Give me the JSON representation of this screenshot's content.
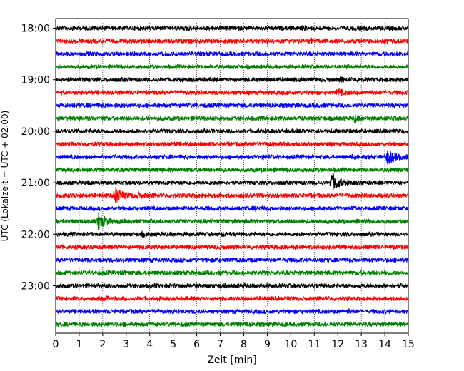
{
  "chart_data": {
    "type": "line",
    "title": "",
    "xlabel": "Zeit  [min]",
    "ylabel": "UTC (Lokalzeit = UTC + 02:00)",
    "xlim": [
      0,
      15
    ],
    "x_ticks": [
      0,
      1,
      2,
      3,
      4,
      5,
      6,
      7,
      8,
      9,
      10,
      11,
      12,
      13,
      14,
      15
    ],
    "y_ticks": [
      "18:00",
      "19:00",
      "20:00",
      "21:00",
      "22:00",
      "23:00"
    ],
    "row_interval_min": 15,
    "grid": "vertical dotted lines at each minute",
    "colors_cycle": [
      "#000000",
      "#ff0000",
      "#0000ff",
      "#008000"
    ],
    "rows": [
      {
        "start": "18:00",
        "color": "#000000",
        "events": [
          {
            "minute": 5.6,
            "amplitude": 0.5
          },
          {
            "minute": 10.5,
            "amplitude": 0.4
          }
        ]
      },
      {
        "start": "18:15",
        "color": "#ff0000",
        "events": [
          {
            "minute": 10.8,
            "amplitude": 0.6
          }
        ]
      },
      {
        "start": "18:30",
        "color": "#0000ff",
        "events": []
      },
      {
        "start": "18:45",
        "color": "#008000",
        "events": []
      },
      {
        "start": "19:00",
        "color": "#000000",
        "events": [
          {
            "minute": 12.1,
            "amplitude": 0.4
          }
        ]
      },
      {
        "start": "19:15",
        "color": "#ff0000",
        "events": [
          {
            "minute": 12.0,
            "amplitude": 1.2
          }
        ]
      },
      {
        "start": "19:30",
        "color": "#0000ff",
        "events": []
      },
      {
        "start": "19:45",
        "color": "#008000",
        "events": [
          {
            "minute": 4.3,
            "amplitude": 0.4
          },
          {
            "minute": 12.7,
            "amplitude": 1.2
          }
        ]
      },
      {
        "start": "20:00",
        "color": "#000000",
        "events": []
      },
      {
        "start": "20:15",
        "color": "#ff0000",
        "events": []
      },
      {
        "start": "20:30",
        "color": "#0000ff",
        "events": [
          {
            "minute": 8.8,
            "amplitude": 0.4
          },
          {
            "minute": 12.6,
            "amplitude": 0.5
          },
          {
            "minute": 14.1,
            "amplitude": 2.4
          }
        ]
      },
      {
        "start": "20:45",
        "color": "#008000",
        "events": [
          {
            "minute": 1.1,
            "amplitude": 0.4
          }
        ]
      },
      {
        "start": "21:00",
        "color": "#000000",
        "events": [
          {
            "minute": 11.7,
            "amplitude": 3.2
          }
        ]
      },
      {
        "start": "21:15",
        "color": "#ff0000",
        "events": [
          {
            "minute": 2.5,
            "amplitude": 2.6
          },
          {
            "minute": 3.5,
            "amplitude": 0.8
          }
        ]
      },
      {
        "start": "21:30",
        "color": "#0000ff",
        "events": [
          {
            "minute": 8.5,
            "amplitude": 0.3
          }
        ]
      },
      {
        "start": "21:45",
        "color": "#008000",
        "events": [
          {
            "minute": 1.8,
            "amplitude": 2.6
          }
        ]
      },
      {
        "start": "22:00",
        "color": "#000000",
        "events": [
          {
            "minute": 3.7,
            "amplitude": 0.4
          },
          {
            "minute": 7.1,
            "amplitude": 0.4
          }
        ]
      },
      {
        "start": "22:15",
        "color": "#ff0000",
        "events": []
      },
      {
        "start": "22:30",
        "color": "#0000ff",
        "events": []
      },
      {
        "start": "22:45",
        "color": "#008000",
        "events": [
          {
            "minute": 2.8,
            "amplitude": 0.4
          }
        ]
      },
      {
        "start": "23:00",
        "color": "#000000",
        "events": []
      },
      {
        "start": "23:15",
        "color": "#ff0000",
        "events": [
          {
            "minute": 2.1,
            "amplitude": 0.5
          }
        ]
      },
      {
        "start": "23:30",
        "color": "#0000ff",
        "events": [
          {
            "minute": 12.4,
            "amplitude": 0.4
          }
        ]
      },
      {
        "start": "23:45",
        "color": "#008000",
        "events": []
      }
    ]
  }
}
